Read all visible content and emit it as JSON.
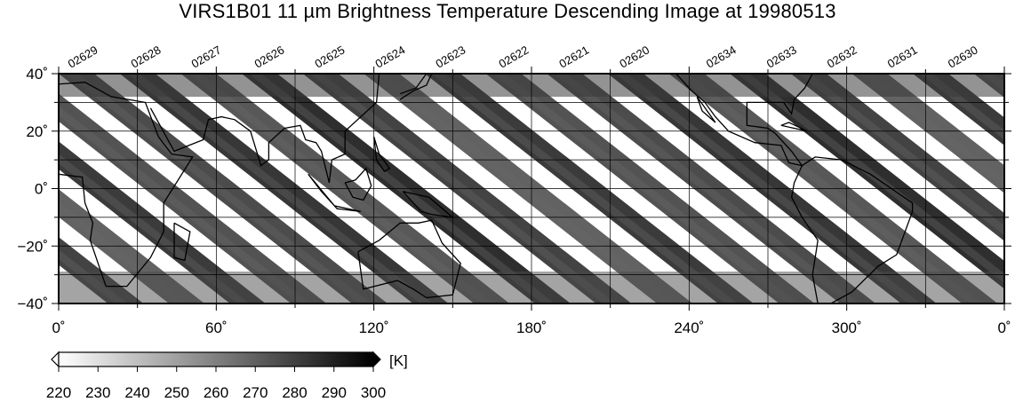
{
  "title": "VIRS1B01 11 µm Brightness Temperature Descending Image at 19980513",
  "map": {
    "lon_range": [
      0,
      360
    ],
    "lat_range": [
      -40,
      40
    ],
    "lon_ticks": [
      {
        "value": 0,
        "label": "0˚"
      },
      {
        "value": 60,
        "label": "60˚"
      },
      {
        "value": 120,
        "label": "120˚"
      },
      {
        "value": 180,
        "label": "180˚"
      },
      {
        "value": 240,
        "label": "240˚"
      },
      {
        "value": 300,
        "label": "300˚"
      },
      {
        "value": 360,
        "label": "0˚"
      }
    ],
    "lat_ticks": [
      {
        "value": 40,
        "label": "40˚"
      },
      {
        "value": 20,
        "label": "20˚"
      },
      {
        "value": 0,
        "label": "0˚"
      },
      {
        "value": -20,
        "label": "−20˚"
      },
      {
        "value": -40,
        "label": "−40˚"
      }
    ],
    "grid_spacing_deg": {
      "lon": 30,
      "lat": 10
    },
    "orbits": [
      {
        "label": "02629",
        "lon": 6
      },
      {
        "label": "02628",
        "lon": 30
      },
      {
        "label": "02627",
        "lon": 53
      },
      {
        "label": "02626",
        "lon": 77
      },
      {
        "label": "02625",
        "lon": 100
      },
      {
        "label": "02624",
        "lon": 123
      },
      {
        "label": "02623",
        "lon": 146
      },
      {
        "label": "02622",
        "lon": 170
      },
      {
        "label": "02621",
        "lon": 193
      },
      {
        "label": "02620",
        "lon": 216
      },
      {
        "label": "02634",
        "lon": 249
      },
      {
        "label": "02633",
        "lon": 272
      },
      {
        "label": "02632",
        "lon": 295
      },
      {
        "label": "02631",
        "lon": 318
      },
      {
        "label": "02630",
        "lon": 341
      }
    ]
  },
  "colorbar": {
    "unit": "[K]",
    "min": 220,
    "max": 300,
    "tick_labels": [
      "220",
      "230",
      "240",
      "250",
      "260",
      "270",
      "280",
      "290",
      "300"
    ],
    "colors": {
      "low": "#ffffff",
      "high": "#000000"
    }
  }
}
